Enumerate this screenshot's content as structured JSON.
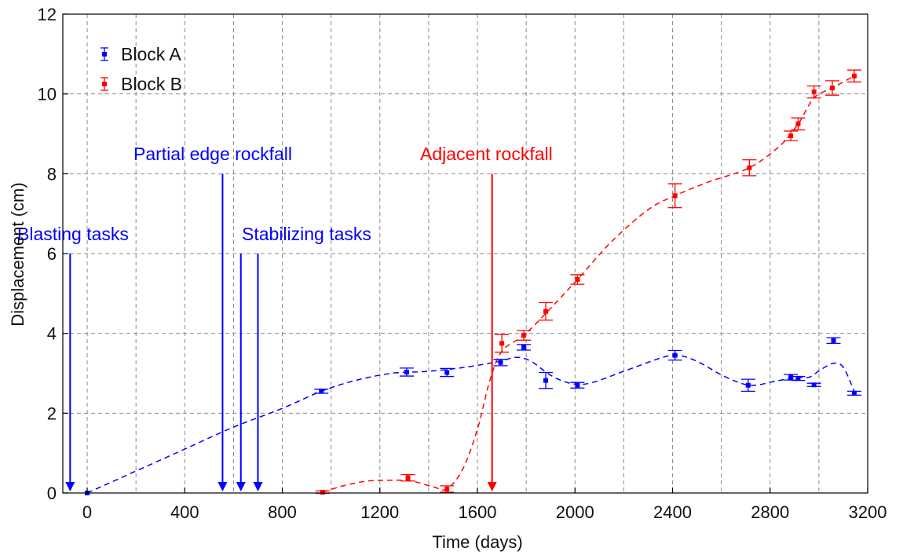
{
  "chart_data": {
    "type": "scatter",
    "title": "",
    "xlabel": "Time (days)",
    "ylabel": "Displacement (cm)",
    "xlim": [
      -100,
      3200
    ],
    "ylim": [
      0,
      12
    ],
    "xticks": [
      0,
      400,
      800,
      1200,
      1600,
      2000,
      2400,
      2800,
      3200
    ],
    "xtick_labels": [
      "0",
      "400",
      "800",
      "1200",
      "1600",
      "2000",
      "2400",
      "2800",
      "3200"
    ],
    "yticks": [
      0,
      2,
      4,
      6,
      8,
      10,
      12
    ],
    "ytick_labels": [
      "0",
      "2",
      "4",
      "6",
      "8",
      "10",
      "12"
    ],
    "grid": true,
    "legend_position": "top-left",
    "series": [
      {
        "name": "Block A",
        "color": "#0000ff",
        "points": [
          {
            "x": 0,
            "y": 0.0,
            "err": 0.0
          },
          {
            "x": 960,
            "y": 2.55,
            "err": 0.05
          },
          {
            "x": 1310,
            "y": 3.03,
            "err": 0.1
          },
          {
            "x": 1475,
            "y": 3.02,
            "err": 0.1
          },
          {
            "x": 1695,
            "y": 3.27,
            "err": 0.08
          },
          {
            "x": 1790,
            "y": 3.65,
            "err": 0.07
          },
          {
            "x": 1880,
            "y": 2.82,
            "err": 0.2
          },
          {
            "x": 2010,
            "y": 2.7,
            "err": 0.07
          },
          {
            "x": 2410,
            "y": 3.45,
            "err": 0.12
          },
          {
            "x": 2710,
            "y": 2.7,
            "err": 0.15
          },
          {
            "x": 2885,
            "y": 2.9,
            "err": 0.07
          },
          {
            "x": 2915,
            "y": 2.87,
            "err": 0.05
          },
          {
            "x": 2980,
            "y": 2.71,
            "err": 0.04
          },
          {
            "x": 3060,
            "y": 3.82,
            "err": 0.07
          },
          {
            "x": 3145,
            "y": 2.5,
            "err": 0.05
          }
        ]
      },
      {
        "name": "Block B",
        "color": "#ff0000",
        "points": [
          {
            "x": 965,
            "y": 0.02,
            "err": 0.03
          },
          {
            "x": 1315,
            "y": 0.38,
            "err": 0.08
          },
          {
            "x": 1475,
            "y": 0.1,
            "err": 0.08
          },
          {
            "x": 1700,
            "y": 3.75,
            "err": 0.22
          },
          {
            "x": 1790,
            "y": 3.95,
            "err": 0.12
          },
          {
            "x": 1880,
            "y": 4.55,
            "err": 0.22
          },
          {
            "x": 2010,
            "y": 5.35,
            "err": 0.12
          },
          {
            "x": 2410,
            "y": 7.45,
            "err": 0.3
          },
          {
            "x": 2715,
            "y": 8.15,
            "err": 0.2
          },
          {
            "x": 2885,
            "y": 8.95,
            "err": 0.12
          },
          {
            "x": 2915,
            "y": 9.25,
            "err": 0.15
          },
          {
            "x": 2980,
            "y": 10.05,
            "err": 0.15
          },
          {
            "x": 3055,
            "y": 10.15,
            "err": 0.18
          },
          {
            "x": 3145,
            "y": 10.45,
            "err": 0.15
          }
        ]
      }
    ],
    "trend_lines": [
      {
        "series": "Block A",
        "color": "#0000ff",
        "points": [
          [
            0,
            0.0
          ],
          [
            200,
            0.55
          ],
          [
            400,
            1.1
          ],
          [
            600,
            1.65
          ],
          [
            800,
            2.12
          ],
          [
            960,
            2.55
          ],
          [
            1100,
            2.82
          ],
          [
            1250,
            3.0
          ],
          [
            1400,
            3.05
          ],
          [
            1550,
            3.15
          ],
          [
            1690,
            3.3
          ],
          [
            1760,
            3.4
          ],
          [
            1820,
            3.3
          ],
          [
            1900,
            2.95
          ],
          [
            1980,
            2.75
          ],
          [
            2060,
            2.75
          ],
          [
            2200,
            3.05
          ],
          [
            2350,
            3.38
          ],
          [
            2420,
            3.45
          ],
          [
            2500,
            3.3
          ],
          [
            2620,
            2.9
          ],
          [
            2720,
            2.7
          ],
          [
            2820,
            2.8
          ],
          [
            2910,
            2.9
          ],
          [
            2960,
            2.9
          ],
          [
            3010,
            3.1
          ],
          [
            3060,
            3.25
          ],
          [
            3100,
            3.15
          ],
          [
            3145,
            2.55
          ]
        ]
      },
      {
        "series": "Block B",
        "color": "#ff0000",
        "points": [
          [
            965,
            0.02
          ],
          [
            1050,
            0.18
          ],
          [
            1150,
            0.3
          ],
          [
            1250,
            0.32
          ],
          [
            1330,
            0.3
          ],
          [
            1420,
            0.15
          ],
          [
            1475,
            0.1
          ],
          [
            1540,
            0.6
          ],
          [
            1600,
            1.6
          ],
          [
            1650,
            2.8
          ],
          [
            1700,
            3.55
          ],
          [
            1790,
            3.95
          ],
          [
            1880,
            4.5
          ],
          [
            2010,
            5.35
          ],
          [
            2150,
            6.3
          ],
          [
            2300,
            7.1
          ],
          [
            2410,
            7.45
          ],
          [
            2550,
            7.8
          ],
          [
            2715,
            8.15
          ],
          [
            2840,
            8.7
          ],
          [
            2915,
            9.25
          ],
          [
            2980,
            9.9
          ],
          [
            3055,
            10.15
          ],
          [
            3145,
            10.45
          ]
        ]
      }
    ],
    "annotations": [
      {
        "text": "Blasting tasks",
        "color": "#0000ff",
        "arrow_x": [
          -70
        ],
        "arrow_from_y": 6.0
      },
      {
        "text": "Partial edge rockfall",
        "color": "#0000ff",
        "arrow_x": [
          555
        ],
        "arrow_from_y": 8.0
      },
      {
        "text": "Stabilizing tasks",
        "color": "#0000ff",
        "arrow_x": [
          630,
          700
        ],
        "arrow_from_y": 6.0
      },
      {
        "text": "Adjacent rockfall",
        "color": "#ff0000",
        "arrow_x": [
          1660
        ],
        "arrow_from_y": 8.0
      }
    ]
  }
}
